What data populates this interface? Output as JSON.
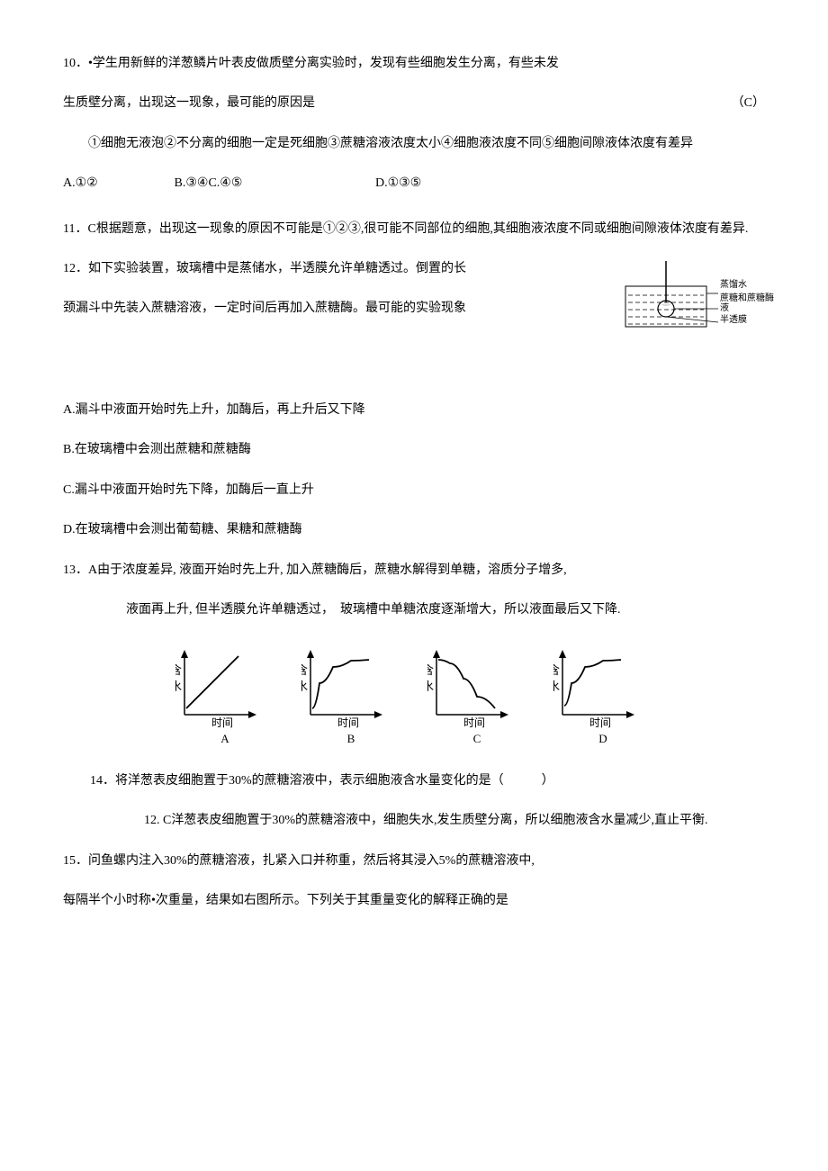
{
  "q10": {
    "num": "10",
    "stem1": "．•学生用新鲜的洋葱鳞片叶表皮做质壁分离实验时，发现有些细胞发生分离，有些未发",
    "stem2_left": "生质壁分离，出现这一现象，最可能的原因是",
    "stem2_right": "（C）",
    "choices_text": "①细胞无液泡②不分离的细胞一定是死细胞③蔗糖溶液浓度太小④细胞液浓度不同⑤细胞间隙液体浓度有差异",
    "optA": "A.①②",
    "optB": "B.③④C.④⑤",
    "optD": "D.①③⑤"
  },
  "q11": {
    "num": "11",
    "text": "．C根据题意，出现这一现象的原因不可能是①②③,很可能不同部位的细胞,其细胞液浓度不同或细胞间隙液体浓度有差异."
  },
  "q12": {
    "num": "12",
    "line1": "．如下实验装置，玻璃槽中是蒸储水，半透膜允许单糖透过。倒置的长",
    "line2": "颈漏斗中先装入蔗糖溶液，一定时间后再加入蔗糖酶。最可能的实验现象",
    "dlabel1": "蒸馏水",
    "dlabel2": "蔗糖和蔗糖酶液",
    "dlabel3": "半透膜",
    "optA": "A.漏斗中液面开始时先上升，加酶后，再上升后又下降",
    "optB": "B.在玻璃槽中会测出蔗糖和蔗糖酶",
    "optC": "C.漏斗中液面开始时先下降，加酶后一直上升",
    "optD": "D.在玻璃槽中会测出葡萄糖、果糖和蔗糖酶"
  },
  "q13": {
    "num": "13",
    "line1": "．A由于浓度差异, 液面开始时先上升, 加入蔗糖酶后，蔗糖水解得到单糖，溶质分子增多,",
    "line2": "液面再上升, 但半透膜允许单糖透过，　玻璃槽中单糖浓度逐渐增大，所以液面最后又下降."
  },
  "charts": {
    "ylabel1": "含",
    "ylabel2": "水",
    "xlabel": "时间",
    "labA": "A",
    "labB": "B",
    "labC": "C",
    "labD": "D",
    "axis_color": "#000000",
    "curves": {
      "A": [
        [
          12,
          68
        ],
        [
          70,
          10
        ]
      ],
      "B": [
        [
          12,
          68
        ],
        [
          20,
          40
        ],
        [
          35,
          22
        ],
        [
          55,
          15
        ],
        [
          75,
          14
        ]
      ],
      "C": [
        [
          12,
          14
        ],
        [
          25,
          18
        ],
        [
          40,
          35
        ],
        [
          55,
          55
        ],
        [
          75,
          68
        ]
      ],
      "D": [
        [
          12,
          65
        ],
        [
          20,
          40
        ],
        [
          35,
          22
        ],
        [
          55,
          15
        ],
        [
          75,
          14
        ]
      ]
    }
  },
  "q14": {
    "num": "14",
    "text": "．将洋葱表皮细胞置于30%的蔗糖溶液中，表示细胞液含水量变化的是（　　　）",
    "ans": "12. C洋葱表皮细胞置于30%的蔗糖溶液中，细胞失水,发生质壁分离，所以细胞液含水量减少,直止平衡."
  },
  "q15": {
    "num": "15",
    "line1": "．问鱼螺内注入30%的蔗糖溶液，扎紧入口并称重，然后将其浸入5%的蔗糖溶液中,",
    "line2": "每隔半个小时称•次重量，结果如右图所示。下列关于其重量变化的解释正确的是"
  }
}
